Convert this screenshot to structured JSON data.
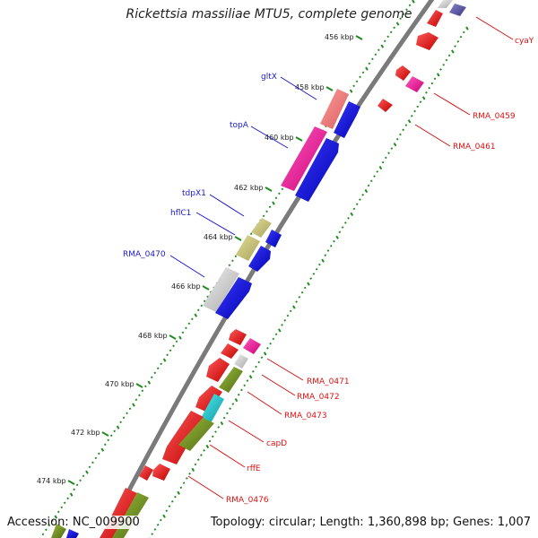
{
  "title": "Rickettsia massiliae MTU5, complete genome",
  "footer": {
    "accession_label": "Accession:",
    "accession": "NC_009900",
    "topology_label": "Topology:",
    "topology": "circular",
    "length_label": "Length:",
    "length": "1,360,898 bp",
    "genes_label": "Genes:",
    "genes": "1,007"
  },
  "ticks": [
    "456 kbp",
    "458 kbp",
    "460 kbp",
    "462 kbp",
    "464 kbp",
    "466 kbp",
    "468 kbp",
    "470 kbp",
    "472 kbp",
    "474 kbp"
  ],
  "labels": {
    "left": [
      "gltX",
      "topA",
      "tdpX1",
      "hflC1",
      "RMA_0470"
    ],
    "right": [
      "cyaY",
      "RMA_0459",
      "RMA_0461",
      "RMA_0471",
      "RMA_0472",
      "RMA_0473",
      "capD",
      "rffE",
      "RMA_0476"
    ]
  },
  "colors": {
    "left_label": "#1a1acc",
    "right_label": "#dd1111",
    "cds_forward": "#0000ee",
    "cds_reverse": "#ee0000",
    "rrna_pink": "#ff1fa0",
    "trna_pink": "#ee6f7f",
    "gray_feature": "#c8c8c8",
    "olive_feature": "#6b8e23",
    "khaki_feature": "#bdb76b",
    "cyan_feature": "#10c0c8",
    "backbone": "#808080",
    "gc_dots": "#228b22"
  }
}
